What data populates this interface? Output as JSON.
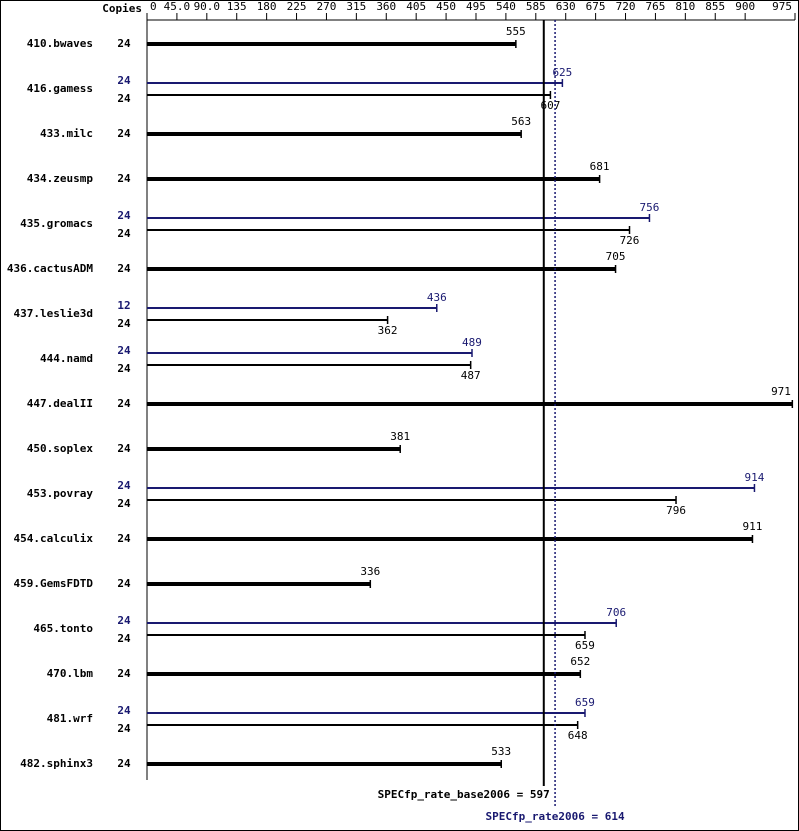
{
  "chart_data": {
    "type": "bar",
    "x_header": "Copies",
    "categories": [
      "410.bwaves",
      "416.gamess",
      "433.milc",
      "434.zeusmp",
      "435.gromacs",
      "436.cactusADM",
      "437.leslie3d",
      "444.namd",
      "447.dealII",
      "450.soplex",
      "453.povray",
      "454.calculix",
      "459.GemsFDTD",
      "465.tonto",
      "470.lbm",
      "481.wrf",
      "482.sphinx3"
    ],
    "series": [
      {
        "color": "#000000",
        "copies": [
          24,
          24,
          24,
          24,
          24,
          24,
          24,
          24,
          24,
          24,
          24,
          24,
          24,
          24,
          24,
          24,
          24
        ],
        "values": [
          555,
          607,
          563,
          681,
          726,
          705,
          362,
          487,
          971,
          381,
          796,
          911,
          336,
          659,
          652,
          648,
          533
        ]
      },
      {
        "color": "#191970",
        "copies": [
          null,
          24,
          null,
          null,
          24,
          null,
          12,
          24,
          null,
          null,
          24,
          null,
          null,
          24,
          null,
          24,
          null
        ],
        "values": [
          null,
          625,
          null,
          null,
          756,
          null,
          436,
          489,
          null,
          null,
          914,
          null,
          null,
          706,
          null,
          659,
          null
        ]
      }
    ],
    "xlim": [
      0,
      975
    ],
    "xticks": [
      0,
      {
        "value": 45,
        "label": "45.0"
      },
      {
        "value": 90,
        "label": "90.0"
      },
      135,
      180,
      225,
      270,
      315,
      360,
      405,
      450,
      495,
      540,
      585,
      630,
      675,
      720,
      765,
      810,
      855,
      900,
      975
    ],
    "reference_lines": [
      {
        "value": 597,
        "label": "SPECfp_rate_base2006 = 597",
        "color": "#000000",
        "style": "solid"
      },
      {
        "value": 614,
        "label": "SPECfp_rate2006 = 614",
        "color": "#191970",
        "style": "dotted"
      }
    ]
  }
}
